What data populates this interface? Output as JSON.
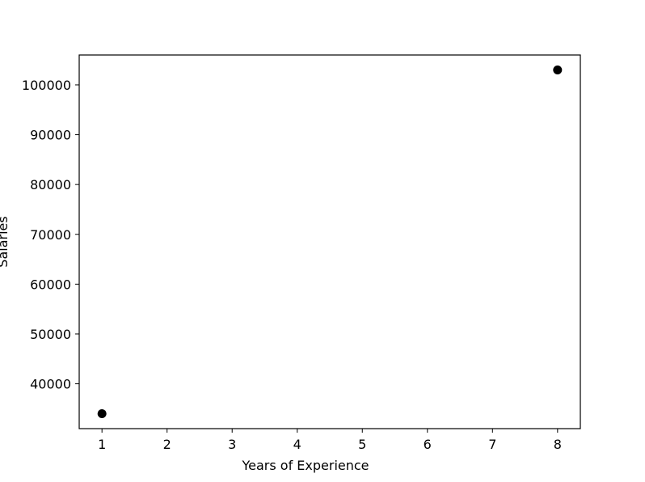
{
  "chart_data": {
    "type": "scatter",
    "title": "",
    "xlabel": "Years of Experience",
    "ylabel": "Salaries",
    "xlim": [
      0.65,
      8.35
    ],
    "ylim": [
      31000,
      106000
    ],
    "xticks": [
      1,
      2,
      3,
      4,
      5,
      6,
      7,
      8
    ],
    "yticks": [
      40000,
      50000,
      60000,
      70000,
      80000,
      90000,
      100000
    ],
    "grid": false,
    "legend": "none",
    "series": [
      {
        "color": "#000000",
        "points": [
          {
            "x": 1,
            "y": 34000
          },
          {
            "x": 8,
            "y": 103000
          }
        ]
      }
    ]
  }
}
